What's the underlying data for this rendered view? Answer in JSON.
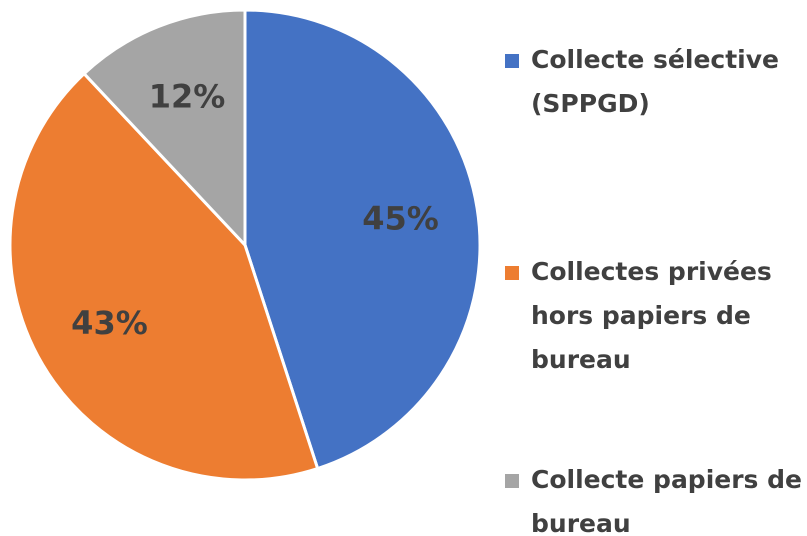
{
  "chart_data": {
    "type": "pie",
    "categories": [
      "Collecte sélective (SPPGD)",
      "Collectes privées hors papiers de bureau",
      "Collecte papiers de bureau"
    ],
    "values": [
      45,
      43,
      12
    ],
    "value_labels": [
      "45%",
      "43%",
      "12%"
    ],
    "colors": [
      "#4472c4",
      "#ed7d31",
      "#a5a5a5"
    ],
    "legend": "right"
  }
}
